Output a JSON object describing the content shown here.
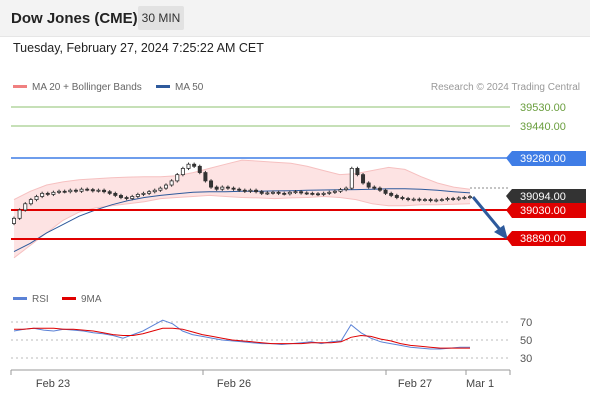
{
  "header": {
    "title": "Dow Jones (CME)",
    "timeframe": "30 MIN"
  },
  "datetime": "Tuesday, February 27, 2024 7:25:22 AM CET",
  "legend": {
    "ma20": "MA 20 + Bollinger Bands",
    "ma50": "MA 50",
    "ma20_color": "#f08080",
    "ma50_color": "#2e5a9c"
  },
  "copyright": "Research © 2024 Trading Central",
  "price_levels": [
    {
      "value": 39530.0,
      "label": "39530.00",
      "kind": "target",
      "color": "#8dc26f"
    },
    {
      "value": 39440.0,
      "label": "39440.00",
      "kind": "target",
      "color": "#8dc26f"
    },
    {
      "value": 39280.0,
      "label": "39280.00",
      "kind": "pivot",
      "color": "#3f7de6"
    },
    {
      "value": 39094.0,
      "label": "39094.00",
      "kind": "last",
      "color": "#333333"
    },
    {
      "value": 39030.0,
      "label": "39030.00",
      "kind": "support",
      "color": "#e00000"
    },
    {
      "value": 38890.0,
      "label": "38890.00",
      "kind": "support",
      "color": "#e00000"
    }
  ],
  "rsi_legend": {
    "rsi": "RSI",
    "ma": "9MA",
    "rsi_color": "#5b82d6",
    "ma_color": "#e00000"
  },
  "rsi_levels": [
    "70",
    "50",
    "30"
  ],
  "x_labels": [
    "Feb 23",
    "Feb 26",
    "Feb 27",
    "Mar 1"
  ],
  "chart_data": {
    "type": "candlestick",
    "title": "Dow Jones (CME)",
    "timeframe": "30 MIN",
    "close_series": [
      38990,
      39030,
      39060,
      39080,
      39095,
      39110,
      39105,
      39115,
      39120,
      39118,
      39125,
      39120,
      39130,
      39128,
      39122,
      39125,
      39118,
      39110,
      39100,
      39090,
      39085,
      39095,
      39105,
      39110,
      39118,
      39125,
      39135,
      39150,
      39170,
      39200,
      39230,
      39250,
      39240,
      39210,
      39170,
      39140,
      39130,
      39140,
      39135,
      39130,
      39125,
      39120,
      39125,
      39118,
      39110,
      39112,
      39115,
      39110,
      39108,
      39115,
      39118,
      39112,
      39110,
      39108,
      39105,
      39110,
      39115,
      39120,
      39128,
      39135,
      39230,
      39200,
      39160,
      39140,
      39135,
      39125,
      39110,
      39100,
      39090,
      39085,
      39080,
      39082,
      39078,
      39080,
      39075,
      39078,
      39080,
      39085,
      39082,
      39088,
      39090,
      39094
    ],
    "bollinger_upper": [
      39080,
      39120,
      39150,
      39165,
      39175,
      39180,
      39185,
      39188,
      39190,
      39190,
      39195,
      39210,
      39230,
      39250,
      39270,
      39265,
      39260,
      39255,
      39240,
      39220,
      39200,
      39205,
      39220,
      39235,
      39225,
      39190,
      39160,
      39140,
      39130
    ],
    "bollinger_lower": [
      38800,
      38860,
      38920,
      38980,
      39020,
      39040,
      39050,
      39060,
      39070,
      39085,
      39090,
      39095,
      39100,
      39095,
      39090,
      39088,
      39085,
      39088,
      39090,
      39095,
      39090,
      39080,
      39060,
      39050,
      39050,
      39055,
      39055,
      39058,
      39060
    ],
    "ma50": [
      38830,
      38870,
      38920,
      38960,
      39000,
      39030,
      39055,
      39075,
      39090,
      39100,
      39108,
      39115,
      39118,
      39118,
      39120,
      39120,
      39122,
      39123,
      39125,
      39126,
      39127,
      39128,
      39130,
      39132,
      39132,
      39130,
      39125,
      39118,
      39112
    ],
    "levels": {
      "resistance": [
        39530,
        39440,
        39280
      ],
      "last": 39094,
      "support": [
        39030,
        38890
      ]
    },
    "forecast": "down",
    "rsi": {
      "levels": [
        70,
        50,
        30
      ],
      "values": [
        60,
        62,
        63,
        61,
        60,
        62,
        61,
        60,
        58,
        57,
        55,
        52,
        56,
        60,
        66,
        72,
        68,
        60,
        56,
        54,
        52,
        50,
        49,
        48,
        47,
        46,
        46,
        45,
        46,
        47,
        48,
        46,
        48,
        49,
        67,
        58,
        52,
        48,
        46,
        44,
        42,
        41,
        40,
        40,
        41,
        42,
        42
      ],
      "ma9": [
        62,
        62,
        63,
        63,
        63,
        62,
        62,
        61,
        60,
        58,
        56,
        55,
        55,
        57,
        60,
        63,
        63,
        62,
        59,
        56,
        54,
        52,
        50,
        49,
        48,
        47,
        46,
        46,
        46,
        46,
        47,
        47,
        47,
        48,
        53,
        55,
        54,
        51,
        49,
        46,
        44,
        43,
        42,
        41,
        41,
        41,
        41
      ]
    },
    "x_ticks": [
      "Feb 23",
      "Feb 26",
      "Feb 27",
      "Mar 1"
    ],
    "grid": false,
    "legend_position": "top-left"
  }
}
